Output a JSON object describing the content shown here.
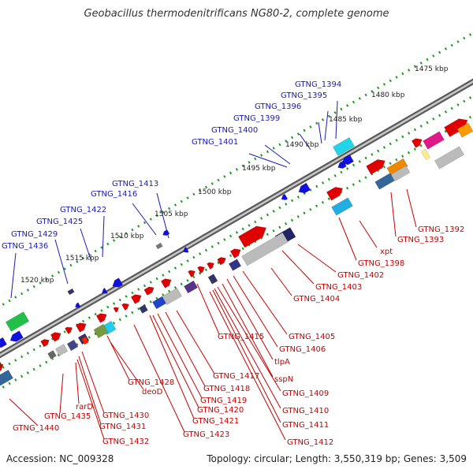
{
  "title": "Geobacillus thermodenitrificans NG80-2, complete genome",
  "footer": {
    "accession": "Accession: NC_009328",
    "stats": "Topology: circular; Length: 3,550,319 bp; Genes: 3,509"
  },
  "kbp_ticks": [
    "1475 kbp",
    "1480 kbp",
    "1485 kbp",
    "1490 kbp",
    "1495 kbp",
    "1500 kbp",
    "1505 kbp",
    "1510 kbp",
    "1515 kbp",
    "1520 kbp"
  ],
  "upper_labels": [
    "GTNG_1394",
    "GTNG_1395",
    "GTNG_1396",
    "GTNG_1399",
    "GTNG_1400",
    "GTNG_1401",
    "GTNG_1413",
    "GTNG_1416",
    "GTNG_1422",
    "GTNG_1425",
    "GTNG_1429",
    "GTNG_1436"
  ],
  "lower_labels": [
    "GTNG_1392",
    "GTNG_1393",
    "xpt",
    "GTNG_1398",
    "GTNG_1402",
    "GTNG_1403",
    "GTNG_1404",
    "GTNG_1405",
    "GTNG_1406",
    "tlpA",
    "sspN",
    "GTNG_1409",
    "GTNG_1410",
    "GTNG_1411",
    "GTNG_1412",
    "GTNG_1415",
    "GTNG_1417",
    "GTNG_1418",
    "GTNG_1419",
    "GTNG_1420",
    "GTNG_1421",
    "GTNG_1423",
    "GTNG_1428",
    "deoD",
    "GTNG_1430",
    "GTNG_1431",
    "GTNG_1432",
    "rarD",
    "GTNG_1435",
    "GTNG_1440"
  ],
  "colors": {
    "forward_cds": "#e00000",
    "reverse_cds": "#1010e0",
    "label_upper": "#1a1ab8",
    "label_lower": "#c80000",
    "backbone": "#777777",
    "dotted_track": "#229922"
  }
}
